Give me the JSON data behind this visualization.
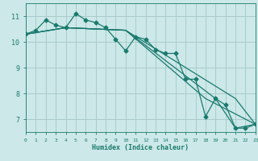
{
  "xlabel": "Humidex (Indice chaleur)",
  "background_color": "#cce8e8",
  "grid_color": "#aacccc",
  "line_color": "#1a7a6e",
  "xlim": [
    0,
    23
  ],
  "ylim": [
    6.5,
    11.5
  ],
  "yticks": [
    7,
    8,
    9,
    10,
    11
  ],
  "xticks": [
    0,
    1,
    2,
    3,
    4,
    5,
    6,
    7,
    8,
    9,
    10,
    11,
    12,
    13,
    14,
    15,
    16,
    17,
    18,
    19,
    20,
    21,
    22,
    23
  ],
  "main_line": {
    "x": [
      0,
      1,
      2,
      3,
      4,
      5,
      6,
      7,
      8,
      9,
      10,
      11,
      12,
      13,
      14,
      15,
      16,
      17,
      18,
      19,
      20,
      21,
      22,
      23
    ],
    "y": [
      10.3,
      10.45,
      10.85,
      10.65,
      10.55,
      11.1,
      10.85,
      10.75,
      10.55,
      10.1,
      9.65,
      10.2,
      10.1,
      9.7,
      9.55,
      9.55,
      8.55,
      8.55,
      7.1,
      7.8,
      7.55,
      6.65,
      6.65,
      6.8
    ]
  },
  "trend_lines": [
    {
      "x": [
        0,
        4,
        10,
        21,
        23
      ],
      "y": [
        10.3,
        10.55,
        10.45,
        7.8,
        6.8
      ]
    },
    {
      "x": [
        0,
        4,
        10,
        18,
        23
      ],
      "y": [
        10.3,
        10.55,
        10.45,
        7.8,
        6.8
      ]
    },
    {
      "x": [
        0,
        4,
        10,
        19,
        21,
        23
      ],
      "y": [
        10.3,
        10.55,
        10.45,
        7.8,
        6.65,
        6.8
      ]
    }
  ]
}
